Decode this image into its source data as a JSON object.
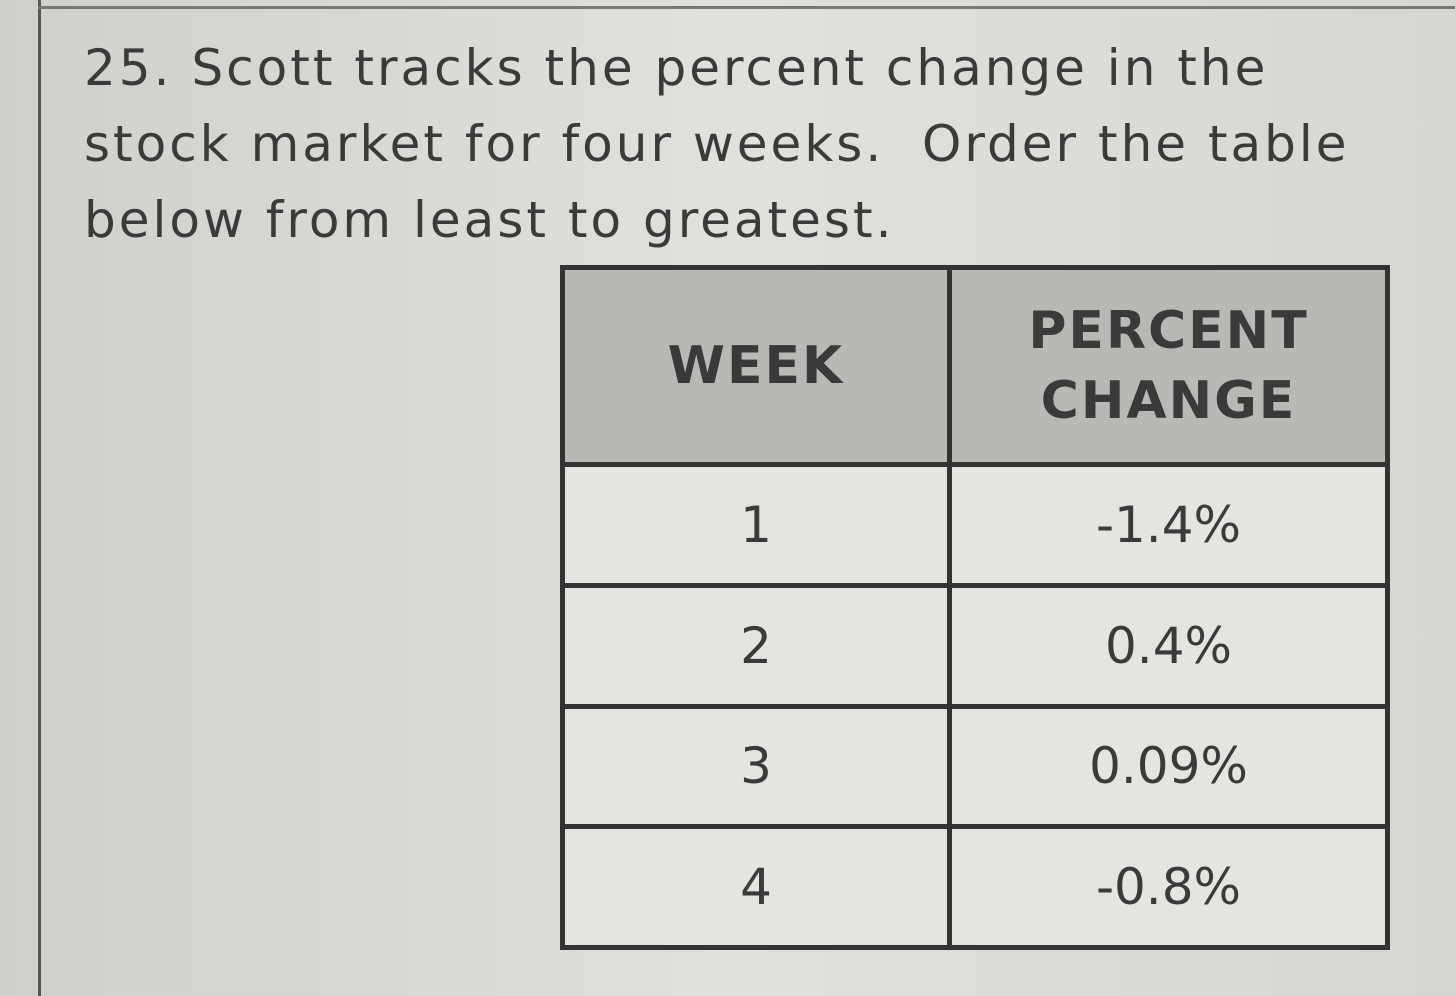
{
  "question": {
    "number": "25.",
    "lines": [
      "Scott tracks the percent change in the",
      "stock market for four weeks.  Order the table",
      "below from least to greatest."
    ]
  },
  "table": {
    "header": [
      "WEEK",
      "PERCENT CHANGE"
    ],
    "rows": [
      [
        "1",
        "-1.4%"
      ],
      [
        "2",
        "0.4%"
      ],
      [
        "3",
        "0.09%"
      ],
      [
        "4",
        "-0.8%"
      ]
    ]
  }
}
